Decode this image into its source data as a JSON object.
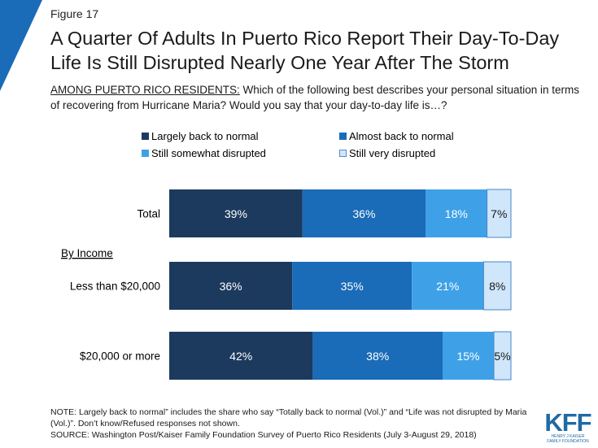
{
  "figure_label": "Figure 17",
  "title": "A Quarter Of Adults In Puerto Rico Report Their Day-To-Day Life Is Still Disrupted Nearly One Year After The Storm",
  "question_lead": "AMONG PUERTO RICO RESIDENTS:",
  "question_text": " Which of the following best describes your personal situation in terms of recovering from Hurricane Maria? Would you say that your day-to-day life is…?",
  "note_line1": "NOTE: Largely back to normal” includes the share who say “Totally back to normal (Vol.)” and “Life was not disrupted by Maria (Vol.)”. Don’t know/Refused responses not shown.",
  "note_line2": "SOURCE: Washington Post/Kaiser Family Foundation Survey of Puerto Rico Residents (July 3-August 29, 2018)",
  "logo": {
    "main": "KFF",
    "sub1": "HENRY J KAISER",
    "sub2": "FAMILY FOUNDATION"
  },
  "colors": {
    "accent": "#1a6bb8"
  },
  "chart_data": {
    "type": "bar",
    "orientation": "horizontal",
    "stacked": true,
    "legend_position": "top",
    "categories": [
      "Total",
      "Less than $20,000",
      "$20,000 or more"
    ],
    "group_labels": [
      {
        "label": "By Income",
        "before_category": "Less than $20,000"
      }
    ],
    "series": [
      {
        "name": "Largely back to normal",
        "values": [
          39,
          36,
          42
        ],
        "labels": [
          "39%",
          "36%",
          "42%"
        ],
        "color": "#1c3a5e",
        "text_color": "#ffffff"
      },
      {
        "name": "Almost back to normal",
        "values": [
          36,
          35,
          38
        ],
        "labels": [
          "36%",
          "35%",
          "38%"
        ],
        "color": "#1a6bb8",
        "text_color": "#ffffff"
      },
      {
        "name": "Still somewhat disrupted",
        "values": [
          18,
          21,
          15
        ],
        "labels": [
          "18%",
          "21%",
          "15%"
        ],
        "color": "#3ea1e8",
        "text_color": "#ffffff"
      },
      {
        "name": "Still very disrupted",
        "values": [
          7,
          8,
          5
        ],
        "labels": [
          "7%",
          "8%",
          "5%"
        ],
        "color": "#cfe6fb",
        "text_color": "#1a1a1a"
      }
    ],
    "xlim": [
      0,
      100
    ]
  }
}
